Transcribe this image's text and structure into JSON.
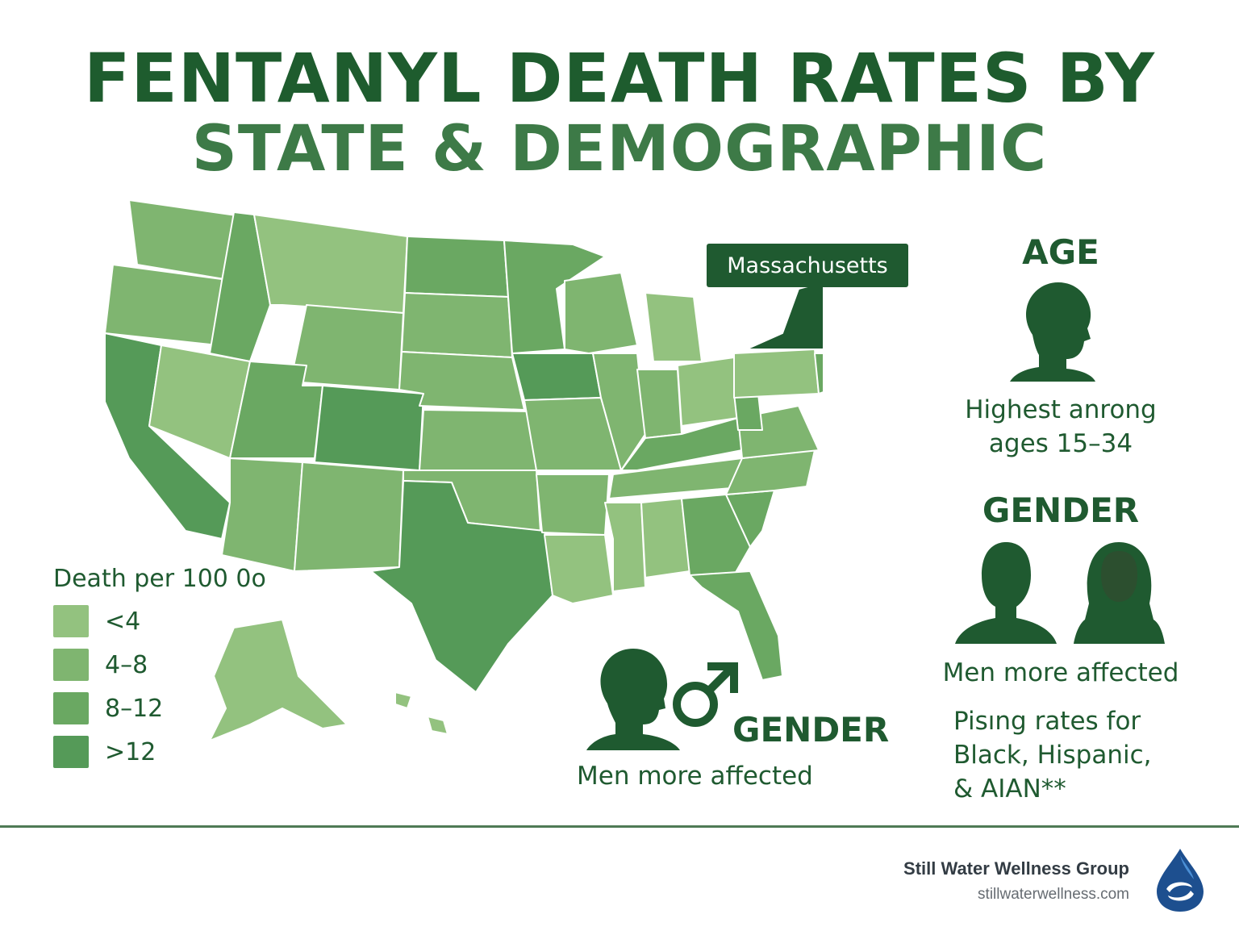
{
  "title": {
    "line1": "FENTANYL DEATH RATES BY",
    "line2": "STATE & DEMOGRAPHIC"
  },
  "map": {
    "callout": "Massachusetts",
    "colors": {
      "lowest": "#93c27f",
      "low": "#7fb570",
      "mid": "#6aa862",
      "high": "#559a58",
      "highlight": "#1f5a30",
      "highlight2": "#2e6b3c",
      "border": "#ffffff"
    }
  },
  "legend": {
    "title": "Death per 100 0o",
    "items": [
      {
        "label": "<4",
        "color": "#93c27f"
      },
      {
        "label": "4–8",
        "color": "#7fb570"
      },
      {
        "label": "8–12",
        "color": "#6aa862"
      },
      {
        "label": ">12",
        "color": "#559a58"
      }
    ]
  },
  "age": {
    "heading": "AGE",
    "text_line1": "Highest anrong",
    "text_line2": "ages 15–34"
  },
  "gender_right": {
    "heading": "GENDER",
    "text": "Men more affected"
  },
  "gender_center": {
    "heading": "GENDER",
    "text": "Men more affected"
  },
  "race": {
    "line1": "Pisıng rates for",
    "line2": "Black, Hispanic,",
    "line3": "& AIAN**"
  },
  "footer": {
    "name": "Still Water Wellness Group",
    "url": "stillwaterwellness.com"
  },
  "icons": {
    "male": "male-head-icon",
    "female": "female-head-icon",
    "male_symbol": "male-symbol-icon",
    "logo": "water-drop-logo-icon"
  }
}
